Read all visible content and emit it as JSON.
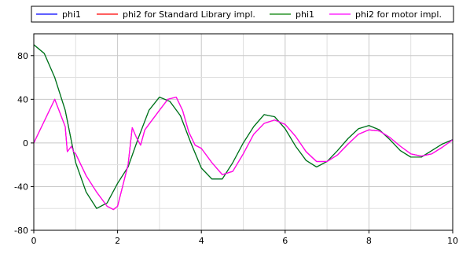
{
  "chart_data": {
    "type": "line",
    "title": "",
    "xlabel": "",
    "ylabel": "",
    "xlim": [
      0,
      10
    ],
    "ylim": [
      -80,
      100
    ],
    "grid": true,
    "legend_position": "top",
    "x_ticks": [
      "0",
      "2",
      "4",
      "6",
      "8",
      "10"
    ],
    "y_ticks": [
      "-80",
      "-40",
      "0",
      "40",
      "80"
    ],
    "series": [
      {
        "name": "phi1",
        "color": "#0000ff",
        "x": [
          0,
          0.25,
          0.5,
          0.75,
          1.0,
          1.25,
          1.5,
          1.75,
          2.0,
          2.25,
          2.5,
          2.75,
          3.0,
          3.25,
          3.5,
          3.75,
          4.0,
          4.25,
          4.5,
          4.75,
          5.0,
          5.25,
          5.5,
          5.75,
          6.0,
          6.25,
          6.5,
          6.75,
          7.0,
          7.25,
          7.5,
          7.75,
          8.0,
          8.25,
          8.5,
          8.75,
          9.0,
          9.25,
          9.5,
          9.75,
          10.0
        ],
        "y": [
          90,
          82,
          60,
          30,
          -18,
          -45,
          -60,
          -55,
          -37,
          -22,
          5,
          30,
          42,
          38,
          25,
          0,
          -23,
          -33,
          -33,
          -18,
          0,
          15,
          26,
          24,
          13,
          -3,
          -16,
          -22,
          -17,
          -7,
          4,
          13,
          16,
          12,
          3,
          -7,
          -13,
          -13,
          -7,
          -1,
          3
        ]
      },
      {
        "name": "phi2 for Standard Library impl.",
        "color": "#ff0000",
        "x": [
          0,
          0.25,
          0.5,
          0.75,
          0.8,
          0.9,
          0.95,
          1.0,
          1.25,
          1.5,
          1.75,
          1.9,
          2.0,
          2.25,
          2.35,
          2.45,
          2.55,
          2.65,
          3.0,
          3.2,
          3.4,
          3.55,
          3.7,
          3.85,
          4.0,
          4.25,
          4.5,
          4.75,
          5.0,
          5.25,
          5.5,
          5.75,
          6.0,
          6.25,
          6.5,
          6.75,
          7.0,
          7.25,
          7.5,
          7.75,
          8.0,
          8.25,
          8.5,
          8.75,
          9.0,
          9.25,
          9.5,
          9.75,
          10.0
        ],
        "y": [
          0,
          20,
          40,
          15,
          -8,
          -3,
          -8,
          -10,
          -30,
          -45,
          -58,
          -61,
          -58,
          -20,
          14,
          5,
          -2,
          12,
          30,
          40,
          42,
          30,
          10,
          -2,
          -5,
          -18,
          -29,
          -26,
          -10,
          8,
          18,
          21,
          17,
          6,
          -8,
          -17,
          -17,
          -11,
          -1,
          8,
          12,
          11,
          5,
          -3,
          -10,
          -12,
          -10,
          -4,
          3
        ]
      },
      {
        "name": "phi1",
        "color": "#008000",
        "x": [
          0,
          0.25,
          0.5,
          0.75,
          1.0,
          1.25,
          1.5,
          1.75,
          2.0,
          2.25,
          2.5,
          2.75,
          3.0,
          3.25,
          3.5,
          3.75,
          4.0,
          4.25,
          4.5,
          4.75,
          5.0,
          5.25,
          5.5,
          5.75,
          6.0,
          6.25,
          6.5,
          6.75,
          7.0,
          7.25,
          7.5,
          7.75,
          8.0,
          8.25,
          8.5,
          8.75,
          9.0,
          9.25,
          9.5,
          9.75,
          10.0
        ],
        "y": [
          90,
          82,
          60,
          30,
          -18,
          -45,
          -60,
          -55,
          -37,
          -22,
          5,
          30,
          42,
          38,
          25,
          0,
          -23,
          -33,
          -33,
          -18,
          0,
          15,
          26,
          24,
          13,
          -3,
          -16,
          -22,
          -17,
          -7,
          4,
          13,
          16,
          12,
          3,
          -7,
          -13,
          -13,
          -7,
          -1,
          3
        ]
      },
      {
        "name": "phi2 for motor impl.",
        "color": "#ff00ff",
        "x": [
          0,
          0.25,
          0.5,
          0.75,
          0.8,
          0.9,
          0.95,
          1.0,
          1.25,
          1.5,
          1.75,
          1.9,
          2.0,
          2.25,
          2.35,
          2.45,
          2.55,
          2.65,
          3.0,
          3.2,
          3.4,
          3.55,
          3.7,
          3.85,
          4.0,
          4.25,
          4.5,
          4.75,
          5.0,
          5.25,
          5.5,
          5.75,
          6.0,
          6.25,
          6.5,
          6.75,
          7.0,
          7.25,
          7.5,
          7.75,
          8.0,
          8.25,
          8.5,
          8.75,
          9.0,
          9.25,
          9.5,
          9.75,
          10.0
        ],
        "y": [
          0,
          20,
          40,
          15,
          -8,
          -3,
          -8,
          -10,
          -30,
          -45,
          -58,
          -61,
          -58,
          -20,
          14,
          5,
          -2,
          12,
          30,
          40,
          42,
          30,
          10,
          -2,
          -5,
          -18,
          -29,
          -26,
          -10,
          8,
          18,
          21,
          17,
          6,
          -8,
          -17,
          -17,
          -11,
          -1,
          8,
          12,
          11,
          5,
          -3,
          -10,
          -12,
          -10,
          -4,
          3
        ]
      }
    ]
  }
}
